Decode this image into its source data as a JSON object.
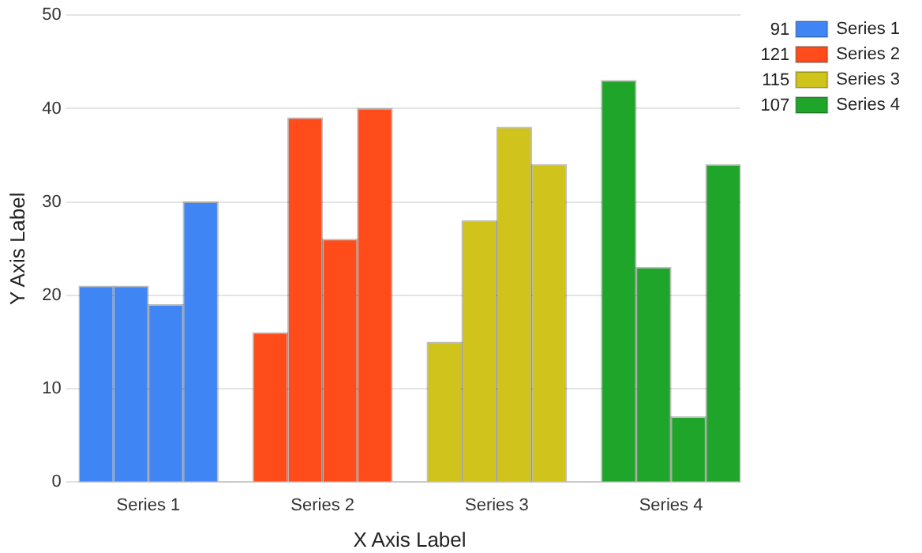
{
  "chart_data": {
    "type": "bar",
    "xlabel": "X Axis Label",
    "ylabel": "Y Axis Label",
    "categories": [
      null,
      "Series 1",
      null,
      null,
      null,
      null,
      "Series 2",
      null,
      null,
      null,
      null,
      "Series 3",
      null,
      null,
      null,
      null,
      "Series 4",
      null,
      null
    ],
    "series": [
      {
        "name": "Series 1",
        "color": "#3f86f4",
        "values": [
          21,
          21,
          19,
          30,
          null,
          null,
          null,
          null,
          null,
          null,
          null,
          null,
          null,
          null,
          null,
          null,
          null,
          null,
          null
        ]
      },
      {
        "name": "Series 2",
        "color": "#ff4c1a",
        "values": [
          null,
          null,
          null,
          null,
          null,
          16,
          39,
          26,
          40,
          null,
          null,
          null,
          null,
          null,
          null,
          null,
          null,
          null,
          null
        ]
      },
      {
        "name": "Series 3",
        "color": "#cfc31c",
        "values": [
          null,
          null,
          null,
          null,
          null,
          null,
          null,
          null,
          null,
          null,
          15,
          28,
          38,
          34,
          null,
          null,
          null,
          null,
          null
        ]
      },
      {
        "name": "Series 4",
        "color": "#1ea52a",
        "values": [
          null,
          null,
          null,
          null,
          null,
          null,
          null,
          null,
          null,
          null,
          null,
          null,
          null,
          null,
          null,
          43,
          23,
          7,
          34
        ]
      }
    ],
    "annotations": [
      "91",
      "121",
      "115",
      "107"
    ],
    "ylim": [
      0,
      50
    ],
    "yticks": [
      0,
      10,
      20,
      30,
      40,
      50
    ],
    "grid": "y",
    "legend": "top right"
  }
}
